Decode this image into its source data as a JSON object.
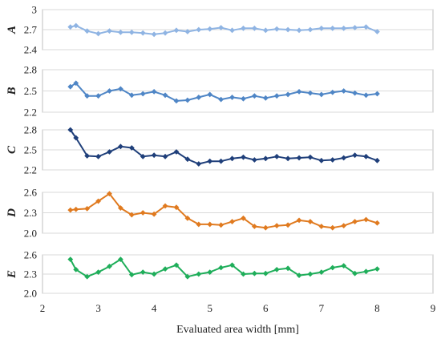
{
  "chart_data": {
    "type": "line",
    "xlabel": "Evaluated area width [mm]",
    "x_axis": {
      "range": [
        2,
        9
      ],
      "ticks": [
        "2",
        "3",
        "4",
        "5",
        "6",
        "7",
        "8",
        "9"
      ]
    },
    "x": [
      2.5,
      2.6,
      2.8,
      3.0,
      3.2,
      3.4,
      3.6,
      3.8,
      4.0,
      4.2,
      4.4,
      4.6,
      4.8,
      5.0,
      5.2,
      5.4,
      5.6,
      5.8,
      6.0,
      6.2,
      6.4,
      6.6,
      6.8,
      7.0,
      7.2,
      7.4,
      7.6,
      7.8,
      8.0
    ],
    "panels": [
      {
        "label": "A",
        "color": "#8fb4e3",
        "ylim": [
          2.4,
          3.0
        ],
        "yticks": [
          "2.4",
          "2.7",
          "3"
        ],
        "values": [
          2.74,
          2.76,
          2.68,
          2.64,
          2.68,
          2.66,
          2.66,
          2.65,
          2.63,
          2.65,
          2.69,
          2.67,
          2.7,
          2.71,
          2.73,
          2.69,
          2.72,
          2.72,
          2.69,
          2.71,
          2.7,
          2.69,
          2.7,
          2.72,
          2.72,
          2.72,
          2.73,
          2.74,
          2.67
        ]
      },
      {
        "label": "B",
        "color": "#4f86c6",
        "ylim": [
          2.2,
          2.8
        ],
        "yticks": [
          "2.2",
          "2.5",
          "2.8"
        ],
        "values": [
          2.56,
          2.61,
          2.43,
          2.43,
          2.5,
          2.53,
          2.44,
          2.46,
          2.49,
          2.44,
          2.36,
          2.37,
          2.41,
          2.45,
          2.38,
          2.41,
          2.39,
          2.43,
          2.4,
          2.43,
          2.45,
          2.49,
          2.47,
          2.45,
          2.48,
          2.5,
          2.47,
          2.44,
          2.46
        ]
      },
      {
        "label": "C",
        "color": "#1f3f7a",
        "ylim": [
          2.2,
          2.8
        ],
        "yticks": [
          "2.2",
          "2.5",
          "2.8"
        ],
        "values": [
          2.8,
          2.68,
          2.41,
          2.4,
          2.47,
          2.55,
          2.53,
          2.4,
          2.42,
          2.4,
          2.47,
          2.36,
          2.29,
          2.33,
          2.33,
          2.37,
          2.39,
          2.35,
          2.37,
          2.4,
          2.37,
          2.38,
          2.39,
          2.34,
          2.35,
          2.38,
          2.42,
          2.4,
          2.34
        ]
      },
      {
        "label": "D",
        "color": "#e07a1f",
        "ylim": [
          2.0,
          2.6
        ],
        "yticks": [
          "2.0",
          "2.3",
          "2.6"
        ],
        "values": [
          2.34,
          2.35,
          2.36,
          2.47,
          2.58,
          2.37,
          2.27,
          2.3,
          2.28,
          2.4,
          2.38,
          2.22,
          2.13,
          2.13,
          2.12,
          2.17,
          2.22,
          2.1,
          2.08,
          2.11,
          2.12,
          2.19,
          2.17,
          2.1,
          2.08,
          2.11,
          2.17,
          2.2,
          2.15
        ]
      },
      {
        "label": "E",
        "color": "#1fae5a",
        "ylim": [
          2.0,
          2.6
        ],
        "yticks": [
          "2.0",
          "2.3",
          "2.6"
        ],
        "values": [
          2.53,
          2.37,
          2.26,
          2.33,
          2.42,
          2.53,
          2.29,
          2.33,
          2.3,
          2.38,
          2.44,
          2.26,
          2.3,
          2.33,
          2.4,
          2.44,
          2.3,
          2.31,
          2.31,
          2.37,
          2.39,
          2.28,
          2.3,
          2.33,
          2.4,
          2.43,
          2.31,
          2.34,
          2.38
        ]
      }
    ]
  }
}
